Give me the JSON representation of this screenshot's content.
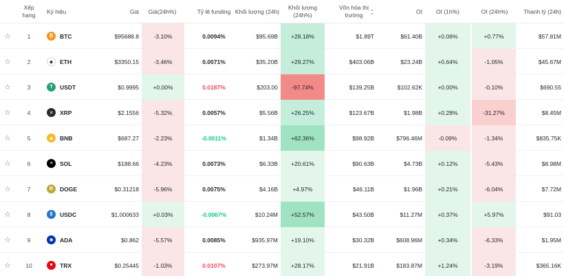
{
  "header": {
    "rank": "Xếp hạng",
    "symbol": "Ký hiệu",
    "price": "Giá",
    "change24h": "Giá(24h%)",
    "funding": "Tỷ lệ funding",
    "volume": "Khối lượng (24h)",
    "volume_pct": "Khối lượng (24h%)",
    "mcap_line1": "Vốn hóa thị",
    "mcap_line2": "trường",
    "oi": "OI",
    "oi_1h": "OI (1h%)",
    "oi_24h": "OI (24h%)",
    "liquidation": "Thanh lý (24h)"
  },
  "colors": {
    "green_strong": "#9fe3c2",
    "green_mid": "#c4eedb",
    "green_light": "#e3f6ec",
    "red_strong": "#f28b87",
    "red_mid": "#f9cfd0",
    "red_light": "#fbe6e7"
  },
  "rows": [
    {
      "star": "☆",
      "rank": "1",
      "symbol": "BTC",
      "icon": "btc-icon",
      "icon_color": "#f7931a",
      "glyph": "₿",
      "price": "$95688.8",
      "change": "-3.10%",
      "change_tone": "red_light",
      "funding": "0.0094%",
      "funding_tone": "neutral",
      "volume": "$95.69B",
      "vol_pct": "+28.18%",
      "vol_tone": "green_mid",
      "mcap": "$1.89T",
      "oi": "$61.40B",
      "oi1h": "+0.06%",
      "oi1h_tone": "green_light",
      "oi24h": "+0.77%",
      "oi24h_tone": "green_light",
      "liq": "$57.81M"
    },
    {
      "star": "☆",
      "rank": "2",
      "symbol": "ETH",
      "icon": "eth-icon",
      "icon_color": "#ffffff",
      "glyph": "◆",
      "price": "$3350.15",
      "change": "-3.46%",
      "change_tone": "red_light",
      "funding": "0.0071%",
      "funding_tone": "neutral",
      "volume": "$35.20B",
      "vol_pct": "+29.27%",
      "vol_tone": "green_mid",
      "mcap": "$403.06B",
      "oi": "$23.24B",
      "oi1h": "+0.64%",
      "oi1h_tone": "green_light",
      "oi24h": "-1.05%",
      "oi24h_tone": "red_light",
      "liq": "$45.67M"
    },
    {
      "star": "☆",
      "rank": "3",
      "symbol": "USDT",
      "icon": "usdt-icon",
      "icon_color": "#26a17b",
      "glyph": "T",
      "price": "$0.9995",
      "change": "+0.00%",
      "change_tone": "green_light",
      "funding": "0.0187%",
      "funding_tone": "neg",
      "volume": "$203.00",
      "vol_pct": "-97.74%",
      "vol_tone": "red_strong",
      "mcap": "$139.25B",
      "oi": "$102.62K",
      "oi1h": "+0.00%",
      "oi1h_tone": "green_light",
      "oi24h": "-0.10%",
      "oi24h_tone": "red_light",
      "liq": "$690.55"
    },
    {
      "star": "☆",
      "rank": "4",
      "symbol": "XRP",
      "icon": "xrp-icon",
      "icon_color": "#23292f",
      "glyph": "✕",
      "price": "$2.1556",
      "change": "-5.32%",
      "change_tone": "red_light",
      "funding": "0.0057%",
      "funding_tone": "neutral",
      "volume": "$5.56B",
      "vol_pct": "+26.25%",
      "vol_tone": "green_mid",
      "mcap": "$123.67B",
      "oi": "$1.98B",
      "oi1h": "+0.28%",
      "oi1h_tone": "green_light",
      "oi24h": "-31.27%",
      "oi24h_tone": "red_mid",
      "liq": "$8.45M"
    },
    {
      "star": "☆",
      "rank": "5",
      "symbol": "BNB",
      "icon": "bnb-icon",
      "icon_color": "#f3ba2f",
      "glyph": "◈",
      "price": "$687.27",
      "change": "-2.23%",
      "change_tone": "red_light",
      "funding": "-0.0011%",
      "funding_tone": "pos",
      "volume": "$1.34B",
      "vol_pct": "+62.36%",
      "vol_tone": "green_strong",
      "mcap": "$98.92B",
      "oi": "$796.46M",
      "oi1h": "-0.09%",
      "oi1h_tone": "red_light",
      "oi24h": "-1.34%",
      "oi24h_tone": "red_light",
      "liq": "$835.75K"
    },
    {
      "star": "☆",
      "rank": "6",
      "symbol": "SOL",
      "icon": "sol-icon",
      "icon_color": "#000000",
      "glyph": "≡",
      "price": "$188.66",
      "change": "-4.23%",
      "change_tone": "red_light",
      "funding": "0.0073%",
      "funding_tone": "neutral",
      "volume": "$6.33B",
      "vol_pct": "+20.61%",
      "vol_tone": "green_light",
      "mcap": "$90.63B",
      "oi": "$4.73B",
      "oi1h": "+0.12%",
      "oi1h_tone": "green_light",
      "oi24h": "-5.43%",
      "oi24h_tone": "red_light",
      "liq": "$8.98M"
    },
    {
      "star": "☆",
      "rank": "7",
      "symbol": "DOGE",
      "icon": "doge-icon",
      "icon_color": "#c2a633",
      "glyph": "Ð",
      "price": "$0.31218",
      "change": "-5.96%",
      "change_tone": "red_light",
      "funding": "0.0075%",
      "funding_tone": "neutral",
      "volume": "$4.16B",
      "vol_pct": "+4.97%",
      "vol_tone": "green_light",
      "mcap": "$46.11B",
      "oi": "$1.96B",
      "oi1h": "+0.21%",
      "oi1h_tone": "green_light",
      "oi24h": "-6.04%",
      "oi24h_tone": "red_light",
      "liq": "$7.72M"
    },
    {
      "star": "☆",
      "rank": "8",
      "symbol": "USDC",
      "icon": "usdc-icon",
      "icon_color": "#2775ca",
      "glyph": "$",
      "price": "$1.000633",
      "change": "+0.03%",
      "change_tone": "green_light",
      "funding": "-0.0067%",
      "funding_tone": "pos",
      "volume": "$10.24M",
      "vol_pct": "+52.57%",
      "vol_tone": "green_strong",
      "mcap": "$43.50B",
      "oi": "$11.27M",
      "oi1h": "+0.37%",
      "oi1h_tone": "green_light",
      "oi24h": "+5.97%",
      "oi24h_tone": "green_light",
      "liq": "$91.03"
    },
    {
      "star": "☆",
      "rank": "9",
      "symbol": "ADA",
      "icon": "ada-icon",
      "icon_color": "#0033ad",
      "glyph": "✺",
      "price": "$0.862",
      "change": "-5.57%",
      "change_tone": "red_light",
      "funding": "0.0085%",
      "funding_tone": "neutral",
      "volume": "$935.97M",
      "vol_pct": "+19.10%",
      "vol_tone": "green_light",
      "mcap": "$30.32B",
      "oi": "$608.96M",
      "oi1h": "+0.34%",
      "oi1h_tone": "green_light",
      "oi24h": "-6.33%",
      "oi24h_tone": "red_light",
      "liq": "$1.95M"
    },
    {
      "star": "☆",
      "rank": "10",
      "symbol": "TRX",
      "icon": "trx-icon",
      "icon_color": "#e50915",
      "glyph": "▼",
      "price": "$0.25445",
      "change": "-1.03%",
      "change_tone": "red_light",
      "funding": "0.0107%",
      "funding_tone": "neg",
      "volume": "$273.97M",
      "vol_pct": "+28.17%",
      "vol_tone": "green_light",
      "mcap": "$21.91B",
      "oi": "$183.87M",
      "oi1h": "+1.24%",
      "oi1h_tone": "green_light",
      "oi24h": "-3.19%",
      "oi24h_tone": "red_light",
      "liq": "$365.16K"
    }
  ]
}
